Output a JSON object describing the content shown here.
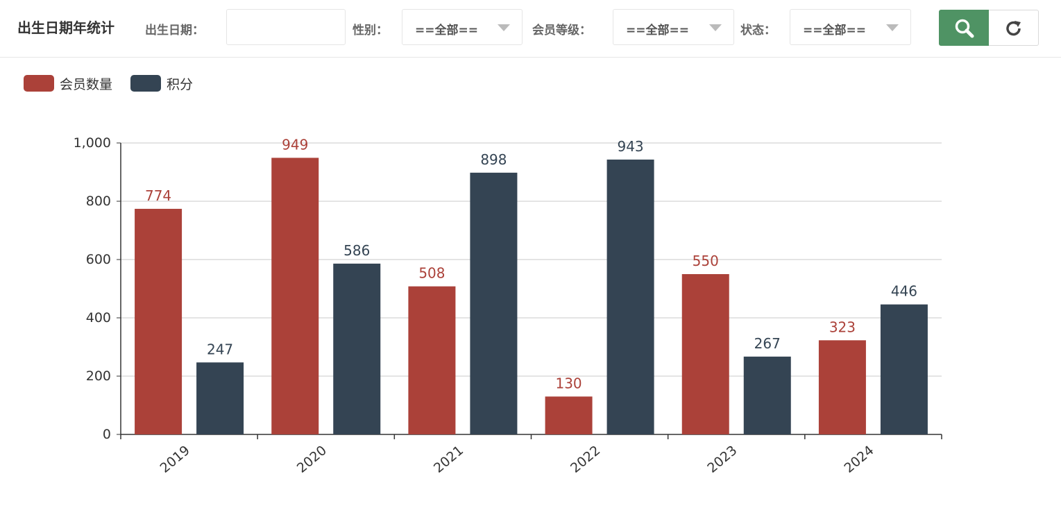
{
  "toolbar": {
    "title": "出生日期年统计",
    "birth_label": "出生日期：",
    "birth_value": "",
    "gender_label": "性别：",
    "gender_value": "==全部==",
    "level_label": "会员等级：",
    "level_value": "==全部==",
    "status_label": "状态：",
    "status_value": "==全部==",
    "search_icon": "search-icon",
    "refresh_icon": "refresh-icon"
  },
  "colors": {
    "series1": "#ab4139",
    "series2": "#344453",
    "search_button": "#4f9364"
  },
  "chart_data": {
    "type": "bar",
    "categories": [
      "2019",
      "2020",
      "2021",
      "2022",
      "2023",
      "2024"
    ],
    "series": [
      {
        "name": "会员数量",
        "values": [
          774,
          949,
          508,
          130,
          550,
          323
        ]
      },
      {
        "name": "积分",
        "values": [
          247,
          586,
          898,
          943,
          267,
          446
        ]
      }
    ],
    "ylim": [
      0,
      1000
    ],
    "yticks": [
      0,
      200,
      400,
      600,
      800,
      1000
    ],
    "ytick_labels": [
      "0",
      "200",
      "400",
      "600",
      "800",
      "1,000"
    ],
    "grid": true,
    "legend": "top-left",
    "data_labels": true
  }
}
